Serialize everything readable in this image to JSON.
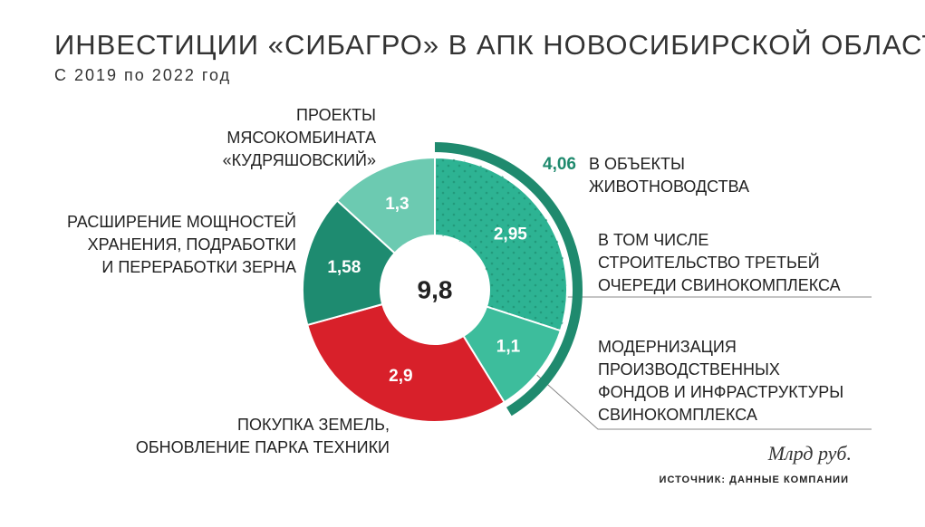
{
  "chart_data": {
    "type": "pie",
    "title": "ИНВЕСТИЦИИ «СИБАГРО» В АПК НОВОСИБИРСКОЙ ОБЛАСТИ",
    "subtitle": "С 2019 по 2022 год",
    "categories": [
      [
        "В ТОМ ЧИСЛЕ",
        "СТРОИТЕЛЬСТВО ТРЕТЬЕЙ",
        "ОЧЕРЕДИ СВИНОКОМПЛЕКСА"
      ],
      [
        "МОДЕРНИЗАЦИЯ",
        "ПРОИЗВОДСТВЕННЫХ",
        "ФОНДОВ И ИНФРАСТРУКТУРЫ",
        "СВИНОКОМПЛЕКСА"
      ],
      [
        "ПОКУПКА ЗЕМЕЛЬ,",
        "ОБНОВЛЕНИЕ ПАРКА ТЕХНИКИ"
      ],
      [
        "РАСШИРЕНИЕ МОЩНОСТЕЙ",
        "ХРАНЕНИЯ, ПОДРАБОТКИ",
        "И ПЕРЕРАБОТКИ ЗЕРНА"
      ],
      [
        "ПРОЕКТЫ",
        "МЯСОКОМБИНАТА",
        "«КУДРЯШОВСКИЙ»"
      ]
    ],
    "values": [
      2.95,
      1.1,
      2.9,
      1.58,
      1.3
    ],
    "value_labels": [
      "2,95",
      "1,1",
      "2,9",
      "1,58",
      "1,3"
    ],
    "colors": [
      "#2db393",
      "#3dbd9c",
      "#d8202a",
      "#1e8b70",
      "#6ccab1"
    ],
    "outer_group": {
      "name": [
        "В ОБЪЕКТЫ",
        "ЖИВОТНОВОДСТВА"
      ],
      "value": 4.06,
      "label": "4,06",
      "color": "#1f8a6e"
    },
    "total": {
      "value": 9.8,
      "label": "9,8"
    },
    "unit": "Млрд руб.",
    "source": "ИСТОЧНИК: ДАННЫЕ КОМПАНИИ"
  }
}
